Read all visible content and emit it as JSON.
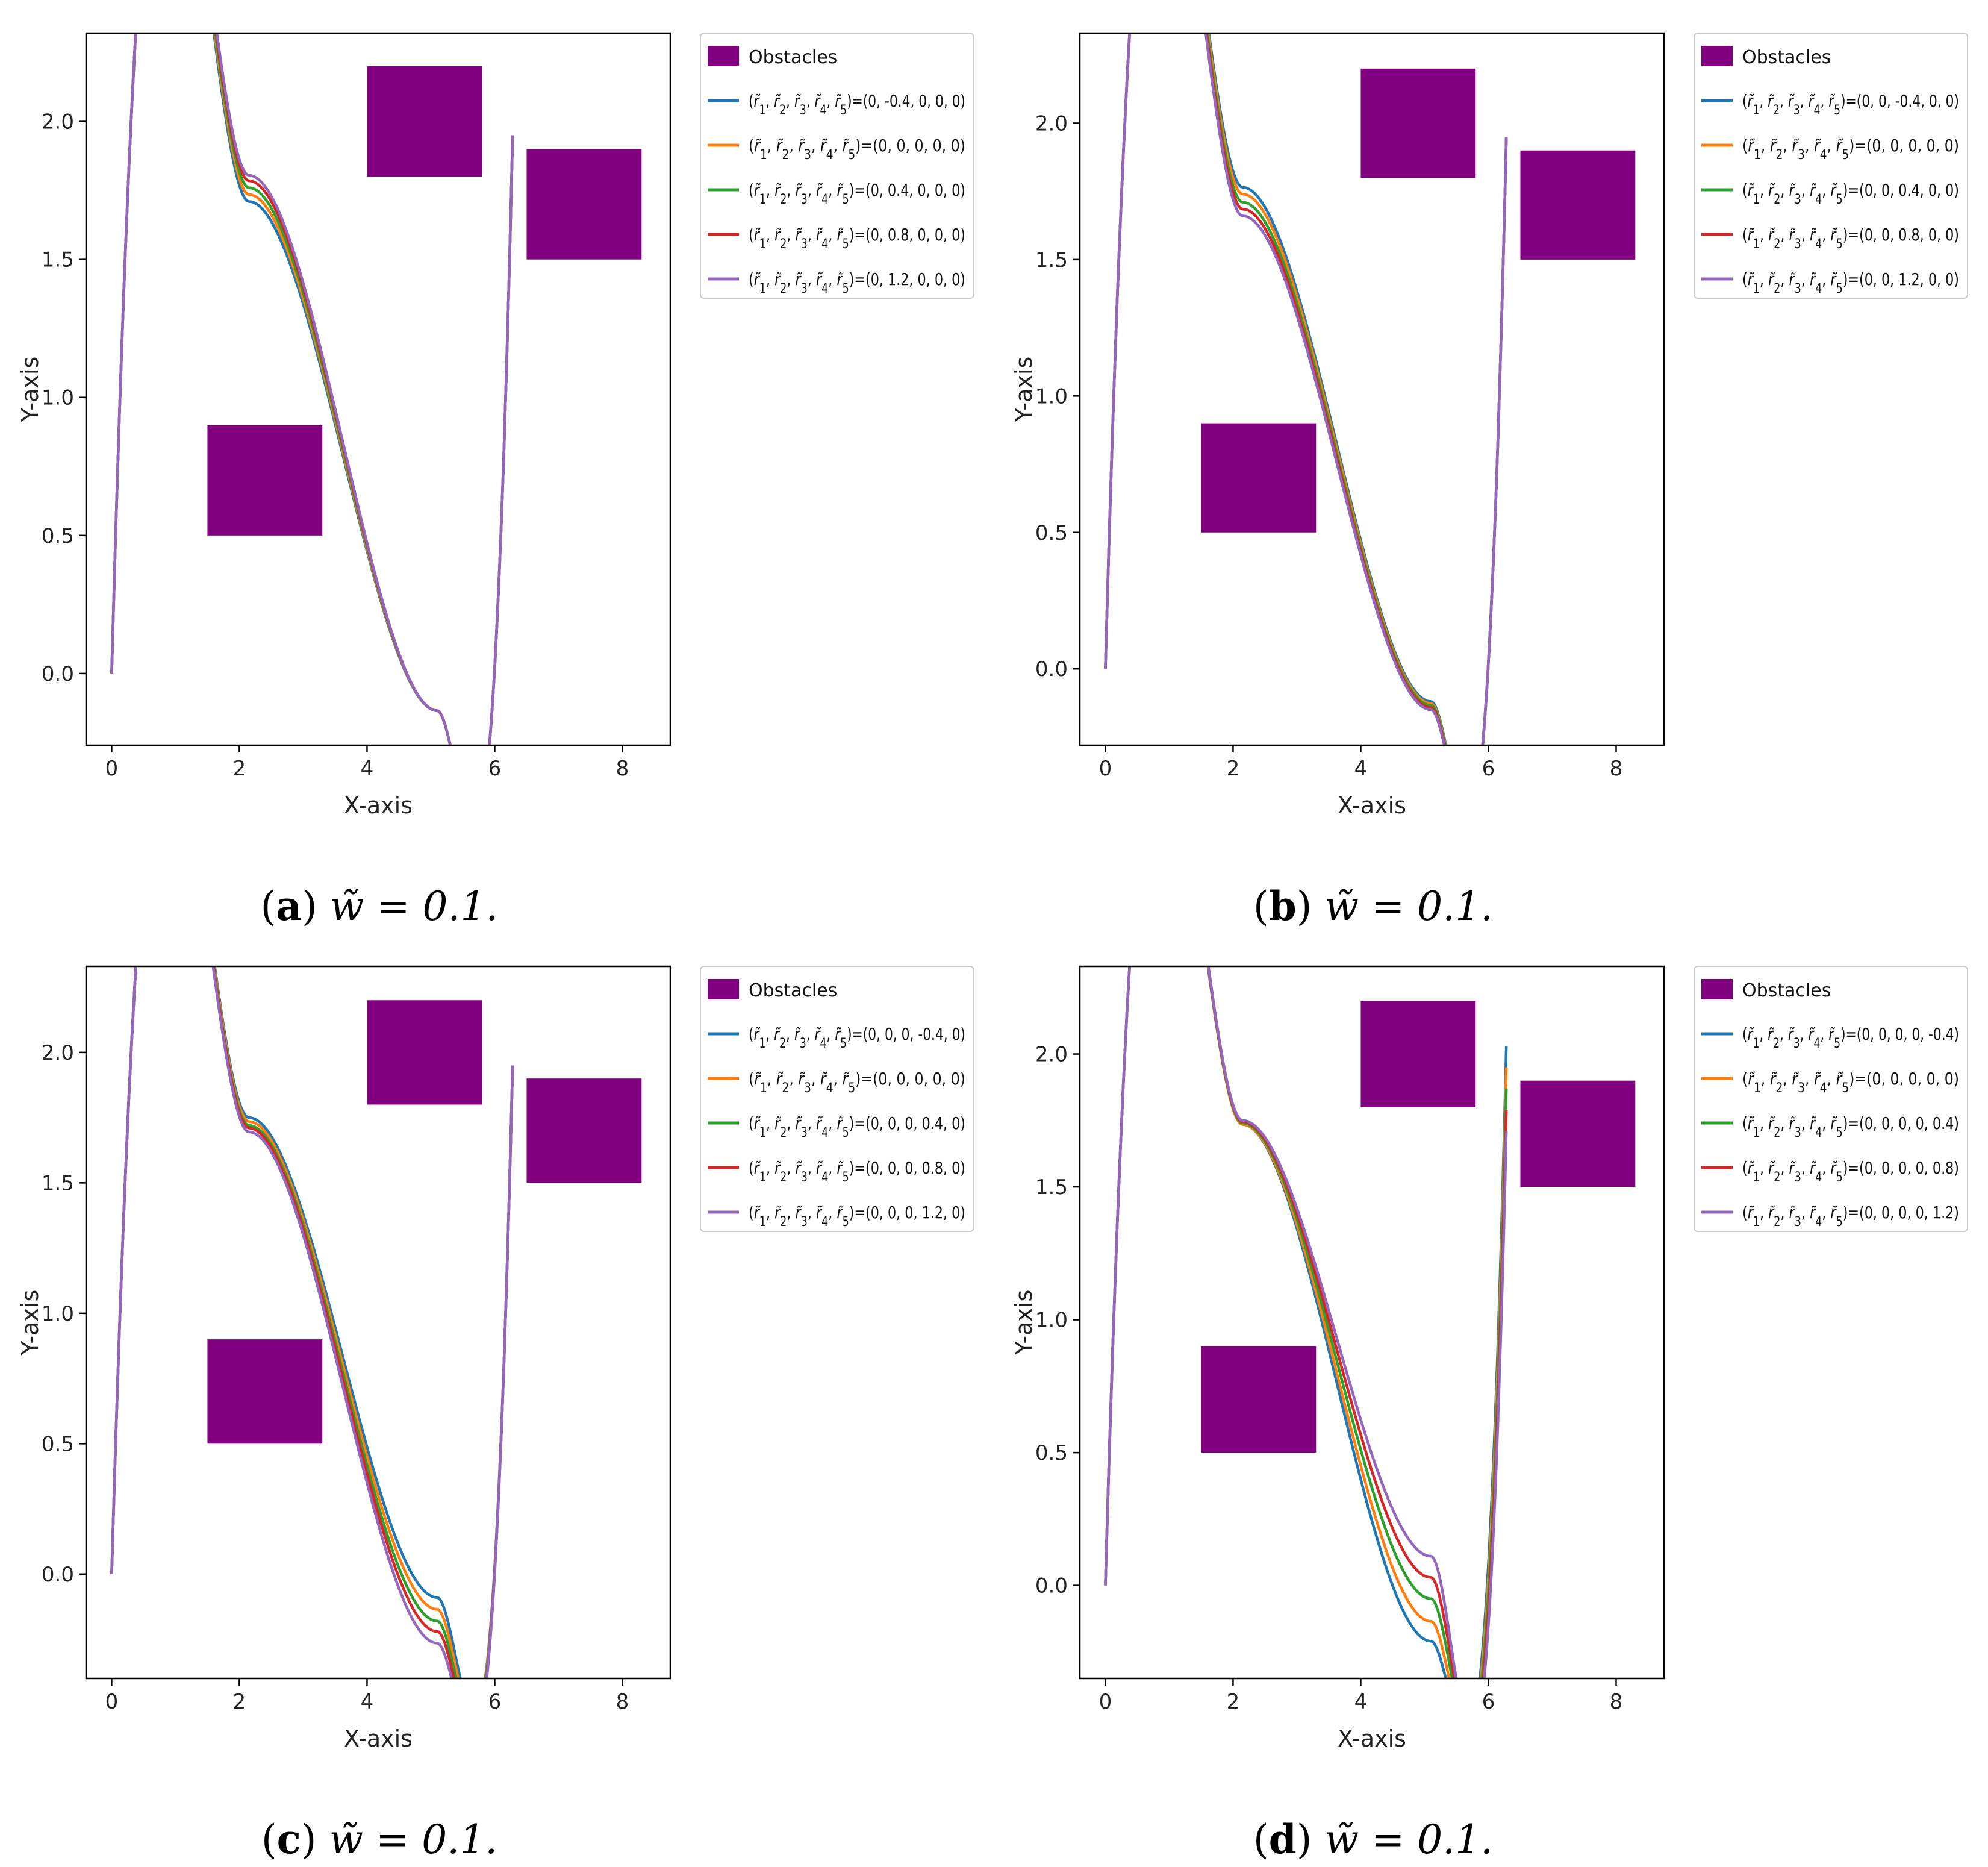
{
  "figure": {
    "caption_equation": "w̃ = 0.1.",
    "colors": {
      "obstacle": "#800080",
      "series": [
        "#1f77b4",
        "#ff7f0e",
        "#2ca02c",
        "#d62728",
        "#9467bd"
      ],
      "axis": "#000000"
    }
  },
  "chart_data": [
    {
      "panel": "a",
      "type": "line",
      "xlabel": "X-axis",
      "ylabel": "Y-axis",
      "xlim": [
        -0.4,
        8.75
      ],
      "ylim": [
        -0.26,
        2.32
      ],
      "xticks": [
        "0",
        "2",
        "4",
        "6",
        "8"
      ],
      "yticks": [
        "0.0",
        "0.5",
        "1.0",
        "1.5",
        "2.0"
      ],
      "legend_position": "outside-right-top",
      "obstacle_label": "Obstacles",
      "obstacles": [
        {
          "x0": 4.0,
          "x1": 5.8,
          "y0": 1.8,
          "y1": 2.2
        },
        {
          "x0": 6.5,
          "x1": 8.3,
          "y0": 1.5,
          "y1": 1.9
        },
        {
          "x0": 1.5,
          "x1": 3.3,
          "y0": 0.5,
          "y1": 0.9
        }
      ],
      "series": [
        {
          "name": "(r̃1, r̃2, r̃3, r̃4, r̃5)=(0, -0.4, 0, 0, 0)",
          "peak": 1.71,
          "trough": -0.135,
          "end": 1.95
        },
        {
          "name": "(r̃1, r̃2, r̃3, r̃4, r̃5)=(0, 0, 0, 0, 0)",
          "peak": 1.735,
          "trough": -0.135,
          "end": 1.95
        },
        {
          "name": "(r̃1, r̃2, r̃3, r̃4, r̃5)=(0, 0.4, 0, 0, 0)",
          "peak": 1.76,
          "trough": -0.135,
          "end": 1.95
        },
        {
          "name": "(r̃1, r̃2, r̃3, r̃4, r̃5)=(0, 0.8, 0, 0, 0)",
          "peak": 1.785,
          "trough": -0.135,
          "end": 1.95
        },
        {
          "name": "(r̃1, r̃2, r̃3, r̃4, r̃5)=(0, 1.2, 0, 0, 0)",
          "peak": 1.805,
          "trough": -0.135,
          "end": 1.95
        }
      ]
    },
    {
      "panel": "b",
      "type": "line",
      "xlabel": "X-axis",
      "ylabel": "Y-axis",
      "xlim": [
        -0.4,
        8.75
      ],
      "ylim": [
        -0.28,
        2.33
      ],
      "xticks": [
        "0",
        "2",
        "4",
        "6",
        "8"
      ],
      "yticks": [
        "0.0",
        "0.5",
        "1.0",
        "1.5",
        "2.0"
      ],
      "legend_position": "outside-right-top",
      "obstacle_label": "Obstacles",
      "obstacles": [
        {
          "x0": 4.0,
          "x1": 5.8,
          "y0": 1.8,
          "y1": 2.2
        },
        {
          "x0": 6.5,
          "x1": 8.3,
          "y0": 1.5,
          "y1": 1.9
        },
        {
          "x0": 1.5,
          "x1": 3.3,
          "y0": 0.5,
          "y1": 0.9
        }
      ],
      "series": [
        {
          "name": "(r̃1, r̃2, r̃3, r̃4, r̃5)=(0, 0, -0.4, 0, 0)",
          "peak": 1.765,
          "trough": -0.12,
          "end": 1.95
        },
        {
          "name": "(r̃1, r̃2, r̃3, r̃4, r̃5)=(0, 0, 0, 0, 0)",
          "peak": 1.74,
          "trough": -0.127,
          "end": 1.95
        },
        {
          "name": "(r̃1, r̃2, r̃3, r̃4, r̃5)=(0, 0, 0.4, 0, 0)",
          "peak": 1.71,
          "trough": -0.134,
          "end": 1.95
        },
        {
          "name": "(r̃1, r̃2, r̃3, r̃4, r̃5)=(0, 0, 0.8, 0, 0)",
          "peak": 1.685,
          "trough": -0.142,
          "end": 1.95
        },
        {
          "name": "(r̃1, r̃2, r̃3, r̃4, r̃5)=(0, 0, 1.2, 0, 0)",
          "peak": 1.66,
          "trough": -0.15,
          "end": 1.95
        }
      ]
    },
    {
      "panel": "c",
      "type": "line",
      "xlabel": "X-axis",
      "ylabel": "Y-axis",
      "xlim": [
        -0.4,
        8.75
      ],
      "ylim": [
        -0.4,
        2.33
      ],
      "xticks": [
        "0",
        "2",
        "4",
        "6",
        "8"
      ],
      "yticks": [
        "0.0",
        "0.5",
        "1.0",
        "1.5",
        "2.0"
      ],
      "legend_position": "outside-right-top",
      "obstacle_label": "Obstacles",
      "obstacles": [
        {
          "x0": 4.0,
          "x1": 5.8,
          "y0": 1.8,
          "y1": 2.2
        },
        {
          "x0": 6.5,
          "x1": 8.3,
          "y0": 1.5,
          "y1": 1.9
        },
        {
          "x0": 1.5,
          "x1": 3.3,
          "y0": 0.5,
          "y1": 0.9
        }
      ],
      "series": [
        {
          "name": "(r̃1, r̃2, r̃3, r̃4, r̃5)=(0, 0, 0, -0.4, 0)",
          "peak": 1.75,
          "trough": -0.09,
          "end": 1.95
        },
        {
          "name": "(r̃1, r̃2, r̃3, r̃4, r̃5)=(0, 0, 0, 0, 0)",
          "peak": 1.735,
          "trough": -0.135,
          "end": 1.95
        },
        {
          "name": "(r̃1, r̃2, r̃3, r̃4, r̃5)=(0, 0, 0, 0.4, 0)",
          "peak": 1.72,
          "trough": -0.18,
          "end": 1.95
        },
        {
          "name": "(r̃1, r̃2, r̃3, r̃4, r̃5)=(0, 0, 0, 0.8, 0)",
          "peak": 1.71,
          "trough": -0.22,
          "end": 1.95
        },
        {
          "name": "(r̃1, r̃2, r̃3, r̃4, r̃5)=(0, 0, 0, 1.2, 0)",
          "peak": 1.695,
          "trough": -0.265,
          "end": 1.95
        }
      ]
    },
    {
      "panel": "d",
      "type": "line",
      "xlabel": "X-axis",
      "ylabel": "Y-axis",
      "xlim": [
        -0.4,
        8.75
      ],
      "ylim": [
        -0.35,
        2.33
      ],
      "xticks": [
        "0",
        "2",
        "4",
        "6",
        "8"
      ],
      "yticks": [
        "0.0",
        "0.5",
        "1.0",
        "1.5",
        "2.0"
      ],
      "legend_position": "outside-right-top",
      "obstacle_label": "Obstacles",
      "obstacles": [
        {
          "x0": 4.0,
          "x1": 5.8,
          "y0": 1.8,
          "y1": 2.2
        },
        {
          "x0": 6.5,
          "x1": 8.3,
          "y0": 1.5,
          "y1": 1.9
        },
        {
          "x0": 1.5,
          "x1": 3.3,
          "y0": 0.5,
          "y1": 0.9
        }
      ],
      "series": [
        {
          "name": "(r̃1, r̃2, r̃3, r̃4, r̃5)=(0, 0, 0, 0, -0.4)",
          "peak": 1.735,
          "trough": -0.21,
          "end": 2.03
        },
        {
          "name": "(r̃1, r̃2, r̃3, r̃4, r̃5)=(0, 0, 0, 0, 0)",
          "peak": 1.735,
          "trough": -0.135,
          "end": 1.95
        },
        {
          "name": "(r̃1, r̃2, r̃3, r̃4, r̃5)=(0, 0, 0, 0, 0.4)",
          "peak": 1.74,
          "trough": -0.05,
          "end": 1.87
        },
        {
          "name": "(r̃1, r̃2, r̃3, r̃4, r̃5)=(0, 0, 0, 0, 0.8)",
          "peak": 1.745,
          "trough": 0.03,
          "end": 1.79
        },
        {
          "name": "(r̃1, r̃2, r̃3, r̃4, r̃5)=(0, 0, 0, 0, 1.2)",
          "peak": 1.75,
          "trough": 0.11,
          "end": 1.71
        }
      ]
    }
  ]
}
